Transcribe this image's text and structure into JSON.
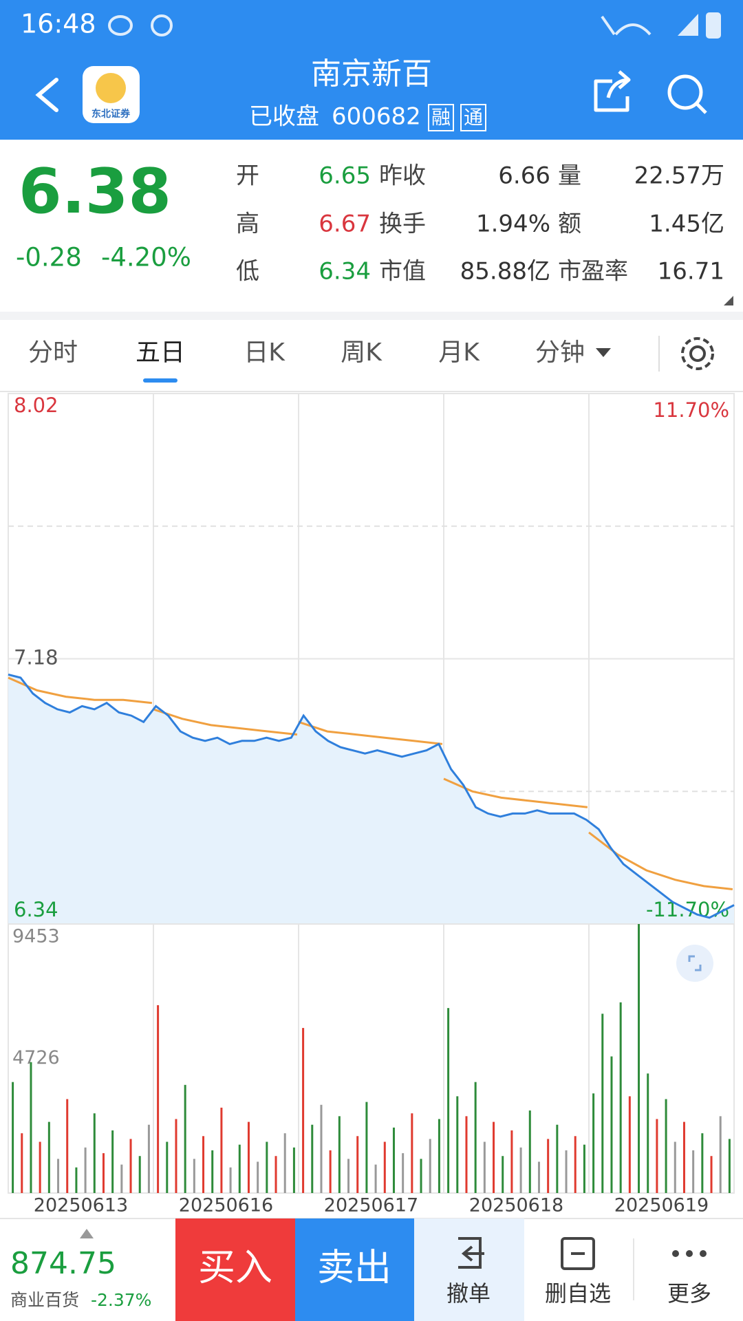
{
  "status_bar": {
    "time": "16:48"
  },
  "header": {
    "title": "南京新百",
    "status": "已收盘",
    "code": "600682",
    "badges": [
      "融",
      "通"
    ],
    "logo_text": "东北证券"
  },
  "quote": {
    "price": "6.38",
    "change": "-0.28",
    "change_pct": "-4.20%",
    "stats": [
      [
        {
          "label": "开",
          "value": "6.65",
          "color": "#1a9e3f"
        },
        {
          "label": "昨收",
          "value": "6.66",
          "color": "#333333"
        },
        {
          "label": "量",
          "value": "22.57万",
          "color": "#333333"
        }
      ],
      [
        {
          "label": "高",
          "value": "6.67",
          "color": "#d9363e"
        },
        {
          "label": "换手",
          "value": "1.94%",
          "color": "#333333"
        },
        {
          "label": "额",
          "value": "1.45亿",
          "color": "#333333"
        }
      ],
      [
        {
          "label": "低",
          "value": "6.34",
          "color": "#1a9e3f"
        },
        {
          "label": "市值",
          "value": "85.88亿",
          "color": "#333333"
        },
        {
          "label": "市盈率",
          "value": "16.71",
          "color": "#333333"
        }
      ]
    ]
  },
  "tabs": {
    "items": [
      "分时",
      "五日",
      "日K",
      "周K",
      "月K",
      "分钟"
    ],
    "active": 1
  },
  "chart_data": {
    "type": "line",
    "days": [
      "20250613",
      "20250616",
      "20250617",
      "20250618",
      "20250619"
    ],
    "ylim": [
      6.34,
      8.02
    ],
    "yticks": [
      6.34,
      7.18,
      8.02
    ],
    "y2lim": [
      -11.7,
      11.7
    ],
    "y2ticks": [
      {
        "value": -11.7,
        "label": "-11.70%"
      },
      {
        "value": 11.7,
        "label": "11.70%"
      }
    ],
    "price": {
      "color": "#2f7fdc",
      "values": [
        7.13,
        7.12,
        7.07,
        7.04,
        7.02,
        7.01,
        7.03,
        7.02,
        7.04,
        7.01,
        7.0,
        6.98,
        7.03,
        7.0,
        6.95,
        6.93,
        6.92,
        6.93,
        6.91,
        6.92,
        6.92,
        6.93,
        6.92,
        6.93,
        7.0,
        6.95,
        6.92,
        6.9,
        6.89,
        6.88,
        6.89,
        6.88,
        6.87,
        6.88,
        6.89,
        6.91,
        6.83,
        6.78,
        6.71,
        6.69,
        6.68,
        6.69,
        6.69,
        6.7,
        6.69,
        6.69,
        6.69,
        6.67,
        6.64,
        6.58,
        6.53,
        6.5,
        6.47,
        6.44,
        6.41,
        6.39,
        6.37,
        6.36,
        6.38,
        6.4
      ]
    },
    "average": {
      "color": "#f0a040",
      "values": [
        [
          7.12,
          7.08,
          7.06,
          7.05,
          7.05,
          7.04
        ],
        [
          7.02,
          6.99,
          6.97,
          6.96,
          6.95,
          6.94
        ],
        [
          6.98,
          6.95,
          6.94,
          6.93,
          6.92,
          6.91
        ],
        [
          6.8,
          6.76,
          6.74,
          6.73,
          6.72,
          6.71
        ],
        [
          6.63,
          6.56,
          6.51,
          6.48,
          6.46,
          6.45
        ]
      ]
    },
    "volume": {
      "ylim": [
        0,
        9453
      ],
      "yticks": [
        4726,
        9453
      ],
      "values": [
        3900,
        2100,
        4600,
        1800,
        2500,
        1200,
        3300,
        900,
        1600,
        2800,
        1400,
        2200,
        1000,
        1900,
        1300,
        2400,
        6600,
        1800,
        2600,
        3800,
        1200,
        2000,
        1500,
        3000,
        900,
        1700,
        2500,
        1100,
        1800,
        1300,
        2100,
        1600,
        5800,
        2400,
        3100,
        1500,
        2700,
        1200,
        2000,
        3200,
        1000,
        1800,
        2300,
        1400,
        2800,
        1200,
        1900,
        2600,
        6500,
        3400,
        2700,
        3900,
        1800,
        2500,
        1300,
        2200,
        1600,
        2900,
        1100,
        1900,
        2400,
        1500,
        2000,
        1700,
        3500,
        6300,
        4800,
        6700,
        3400,
        9453,
        4200,
        2600,
        3300,
        1800,
        2500,
        1500,
        2100,
        1300,
        2700,
        1900
      ],
      "colors": [
        "#2e8b3a",
        "#e03a2f",
        "#2e8b3a",
        "#e03a2f",
        "#2e8b3a",
        "#999999",
        "#e03a2f",
        "#2e8b3a",
        "#999999",
        "#2e8b3a",
        "#e03a2f",
        "#2e8b3a",
        "#999999",
        "#e03a2f",
        "#2e8b3a",
        "#999999",
        "#e03a2f",
        "#2e8b3a",
        "#e03a2f",
        "#2e8b3a",
        "#999999",
        "#e03a2f",
        "#2e8b3a",
        "#e03a2f",
        "#999999",
        "#2e8b3a",
        "#e03a2f",
        "#999999",
        "#2e8b3a",
        "#e03a2f",
        "#999999",
        "#2e8b3a",
        "#e03a2f",
        "#2e8b3a",
        "#999999",
        "#e03a2f",
        "#2e8b3a",
        "#999999",
        "#e03a2f",
        "#2e8b3a",
        "#999999",
        "#e03a2f",
        "#2e8b3a",
        "#999999",
        "#e03a2f",
        "#2e8b3a",
        "#999999",
        "#2e8b3a",
        "#2e8b3a",
        "#2e8b3a",
        "#e03a2f",
        "#2e8b3a",
        "#999999",
        "#e03a2f",
        "#2e8b3a",
        "#e03a2f",
        "#999999",
        "#2e8b3a",
        "#999999",
        "#e03a2f",
        "#2e8b3a",
        "#999999",
        "#e03a2f",
        "#2e8b3a",
        "#2e8b3a",
        "#2e8b3a",
        "#2e8b3a",
        "#2e8b3a",
        "#e03a2f",
        "#2e8b3a",
        "#2e8b3a",
        "#e03a2f",
        "#2e8b3a",
        "#999999",
        "#e03a2f",
        "#999999",
        "#2e8b3a",
        "#e03a2f",
        "#999999",
        "#2e8b3a"
      ]
    }
  },
  "footer": {
    "index_value": "874.75",
    "index_name": "商业百货",
    "index_change": "-2.37%",
    "buttons": [
      "买入",
      "卖出",
      "撤单",
      "删自选",
      "更多"
    ]
  }
}
